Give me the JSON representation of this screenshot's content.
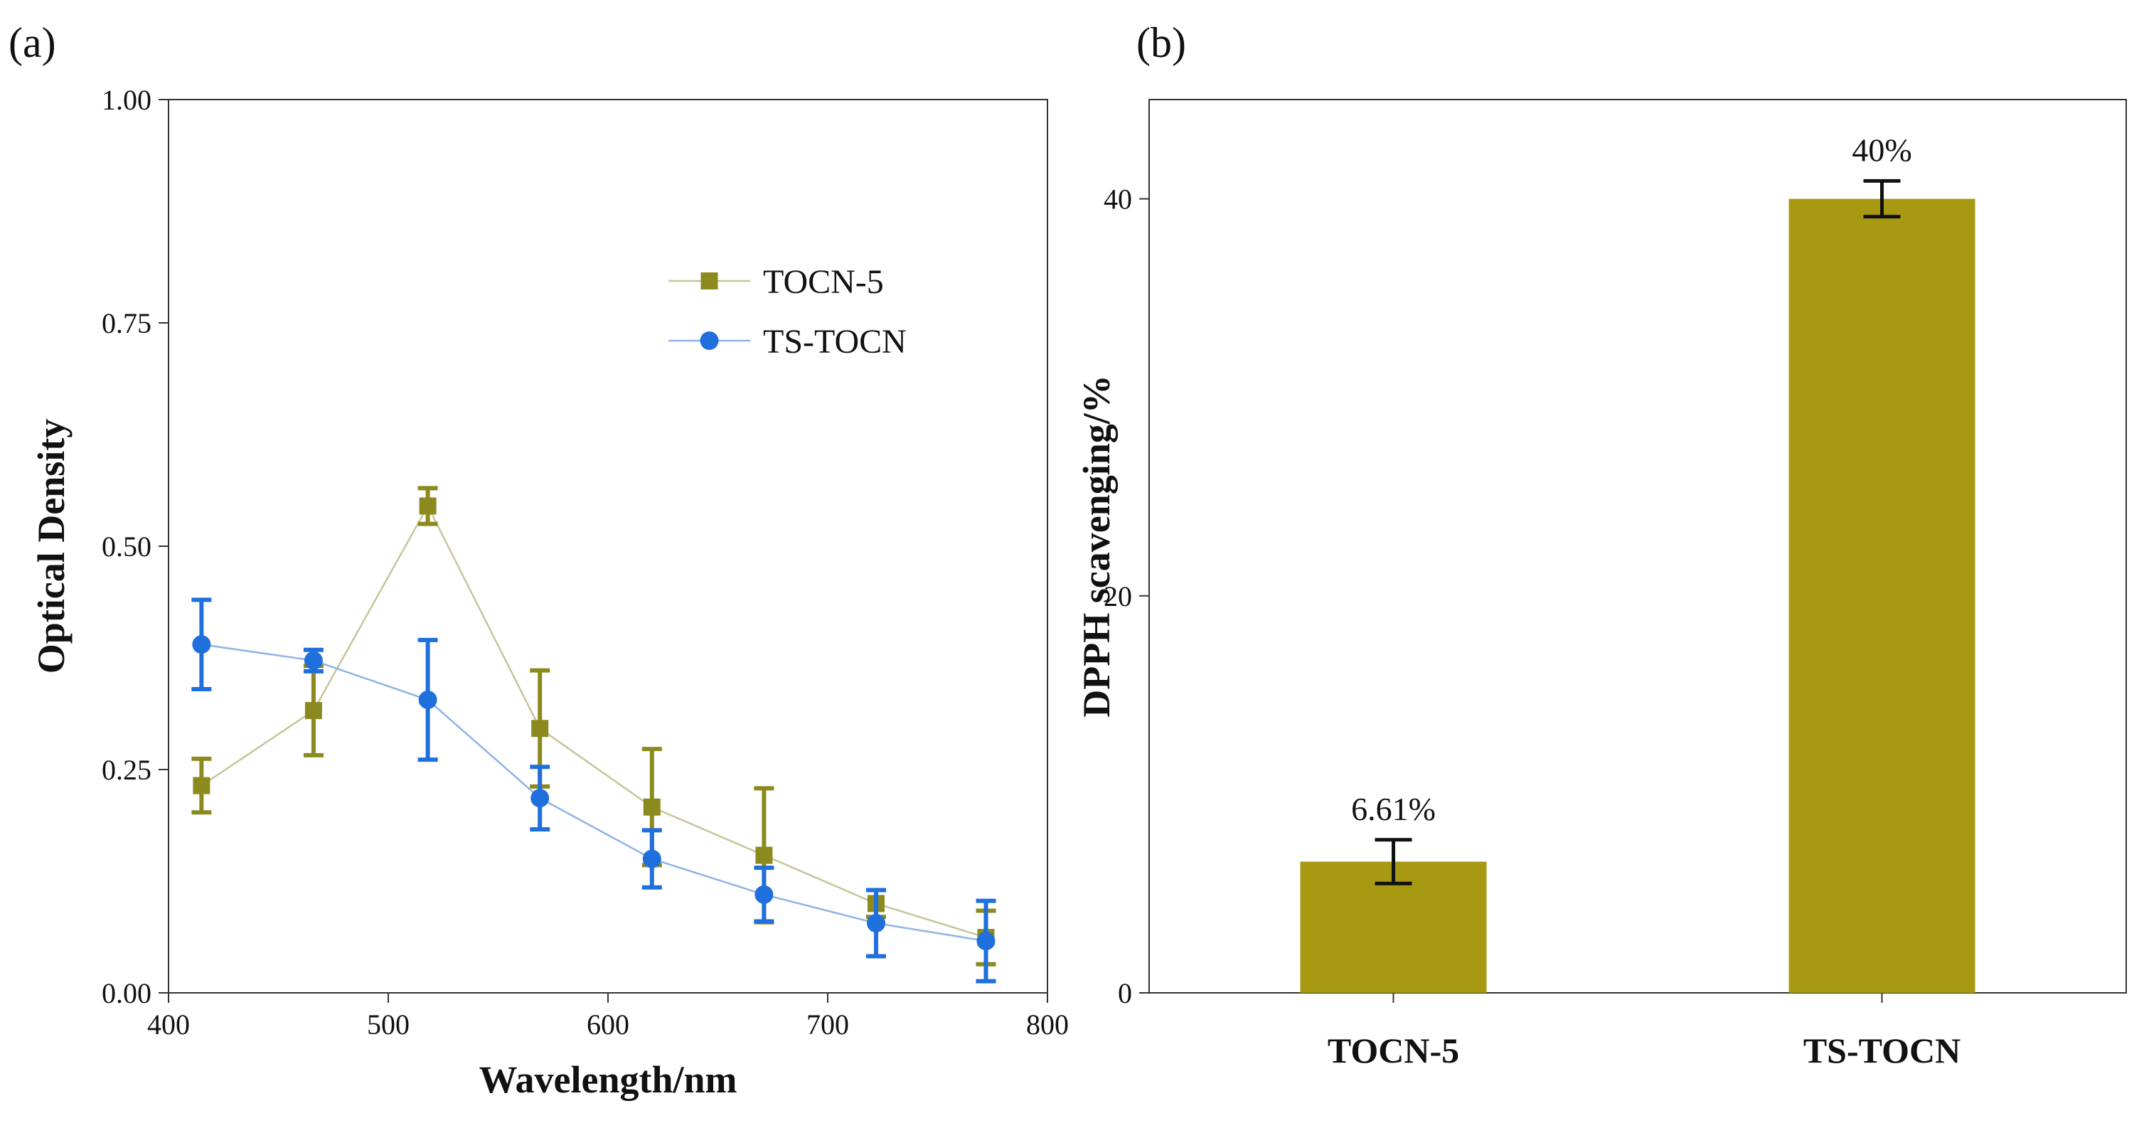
{
  "chart_data": [
    {
      "panel_label": "(a)",
      "type": "line",
      "xlabel": "Wavelength/nm",
      "ylabel": "Optical Density",
      "xlim": [
        400,
        800
      ],
      "ylim": [
        0,
        1.0
      ],
      "xticks": [
        400,
        500,
        600,
        700,
        800
      ],
      "yticks": [
        0.0,
        0.25,
        0.5,
        0.75,
        1.0
      ],
      "xtick_labels": [
        "400",
        "500",
        "600",
        "700",
        "800"
      ],
      "ytick_labels": [
        "0.00",
        "0.25",
        "0.50",
        "0.75",
        "1.00"
      ],
      "legend_position": "upper-right",
      "series": [
        {
          "name": "TOCN-5",
          "marker": "square",
          "color": "#8c8a1e",
          "line_color": "#c8c49a",
          "x": [
            415,
            466,
            518,
            569,
            620,
            671,
            722,
            772
          ],
          "y": [
            0.232,
            0.316,
            0.545,
            0.296,
            0.208,
            0.154,
            0.1,
            0.062
          ],
          "err": [
            0.03,
            0.05,
            0.02,
            0.065,
            0.065,
            0.075,
            0.015,
            0.03
          ]
        },
        {
          "name": "TS-TOCN",
          "marker": "circle",
          "color": "#1f6fdc",
          "line_color": "#8fb3e6",
          "x": [
            415,
            466,
            518,
            569,
            620,
            671,
            722,
            772
          ],
          "y": [
            0.39,
            0.372,
            0.328,
            0.218,
            0.15,
            0.11,
            0.078,
            0.058
          ],
          "err": [
            0.05,
            0.012,
            0.067,
            0.035,
            0.032,
            0.03,
            0.037,
            0.045
          ]
        }
      ]
    },
    {
      "panel_label": "(b)",
      "type": "bar",
      "xlabel": "",
      "ylabel": "DPPH scavenging/%",
      "ylim": [
        0,
        45
      ],
      "yticks": [
        0,
        20,
        40
      ],
      "ytick_labels": [
        "0",
        "20",
        "40"
      ],
      "categories": [
        "TOCN-5",
        "TS-TOCN"
      ],
      "values": [
        6.61,
        40.0
      ],
      "err": [
        1.1,
        0.9
      ],
      "value_labels": [
        "6.61%",
        "40%"
      ],
      "bar_color": "#a79a12"
    }
  ]
}
